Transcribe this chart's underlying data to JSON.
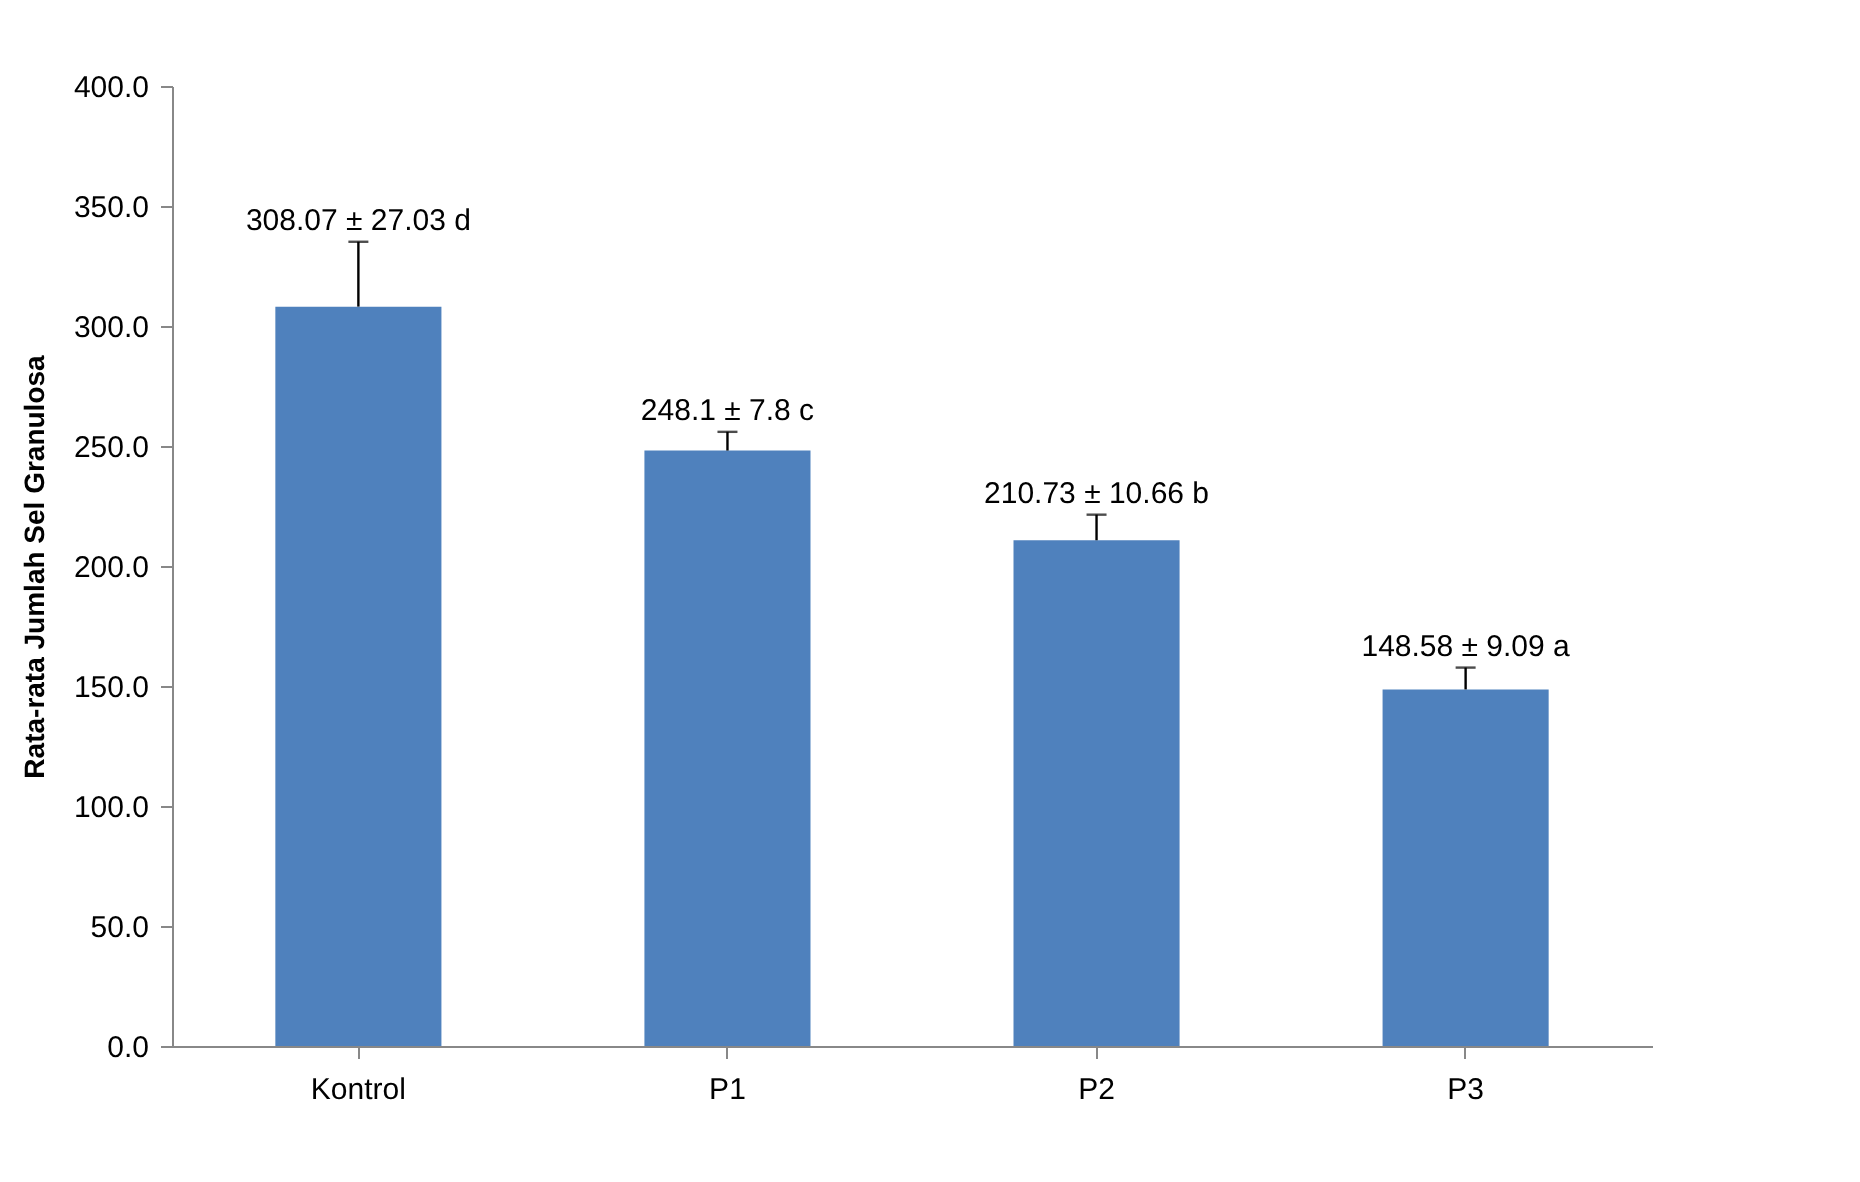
{
  "chart_data": {
    "type": "bar",
    "ylabel": "Rata-rata Jumlah Sel Granulosa",
    "categories": [
      "Kontrol",
      "P1",
      "P2",
      "P3"
    ],
    "values": [
      308.07,
      248.1,
      210.73,
      148.58
    ],
    "errors": [
      [
        308.07,
        335.1
      ],
      [
        248.1,
        255.9
      ],
      [
        210.73,
        221.39
      ],
      [
        148.58,
        157.67
      ]
    ],
    "value_labels": [
      "308.07 ± 27.03 d",
      "248.1 ± 7.8 c",
      "210.73 ± 10.66 b",
      "148.58 ± 9.09 a"
    ],
    "color": "#4f81bd",
    "ylim": [
      0,
      400
    ],
    "yticks": [
      {
        "value": 0,
        "label": "0.0"
      },
      {
        "value": 50,
        "label": "50.0"
      },
      {
        "value": 100,
        "label": "100.0"
      },
      {
        "value": 150,
        "label": "150.0"
      },
      {
        "value": 200,
        "label": "200.0"
      },
      {
        "value": 250,
        "label": "250.0"
      },
      {
        "value": 300,
        "label": "300.0"
      },
      {
        "value": 350,
        "label": "350.0"
      },
      {
        "value": 400,
        "label": "400.0"
      }
    ],
    "grid": false
  }
}
